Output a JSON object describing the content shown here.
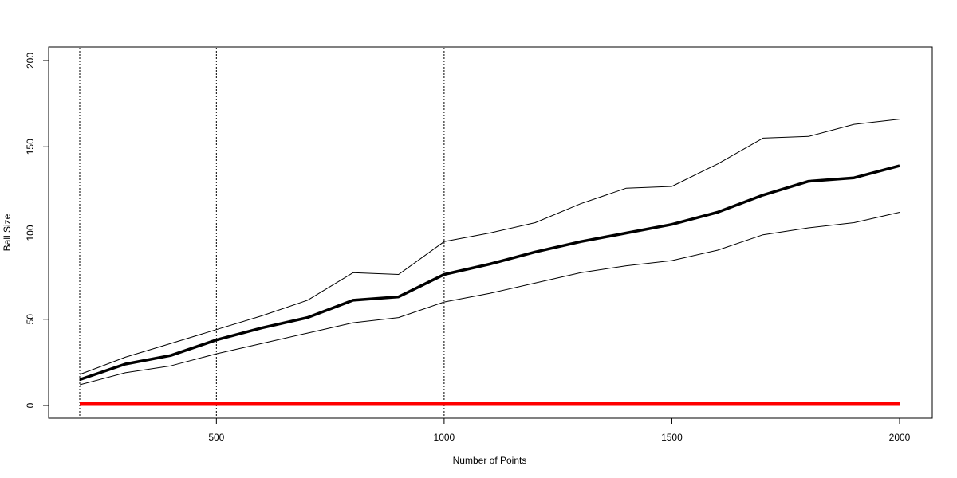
{
  "chart_data": {
    "type": "line",
    "title": "",
    "xlabel": "Number of Points",
    "ylabel": "Ball Size",
    "xlim": [
      200,
      2000
    ],
    "ylim": [
      0,
      200
    ],
    "grid": false,
    "x_ticks": [
      500,
      1000,
      1500,
      2000
    ],
    "y_ticks": [
      0,
      50,
      100,
      150,
      200
    ],
    "x": [
      200,
      300,
      400,
      500,
      600,
      700,
      800,
      900,
      1000,
      1100,
      1200,
      1300,
      1400,
      1500,
      1600,
      1700,
      1800,
      1900,
      2000
    ],
    "series": [
      {
        "color": "#000000",
        "line": "thin",
        "values": [
          18,
          28,
          36,
          44,
          52,
          61,
          77,
          76,
          95,
          100,
          106,
          117,
          126,
          127,
          140,
          155,
          156,
          163,
          166
        ]
      },
      {
        "color": "#000000",
        "line": "thick",
        "values": [
          15,
          24,
          29,
          38,
          45,
          51,
          61,
          63,
          76,
          82,
          89,
          95,
          100,
          105,
          112,
          122,
          130,
          132,
          139
        ]
      },
      {
        "color": "#000000",
        "line": "thin",
        "values": [
          12,
          19,
          23,
          30,
          36,
          42,
          48,
          51,
          60,
          65,
          71,
          77,
          81,
          84,
          90,
          99,
          103,
          106,
          112
        ]
      },
      {
        "color": "#ff0000",
        "line": "thick",
        "values": [
          1,
          1,
          1,
          1,
          1,
          1,
          1,
          1,
          1,
          1,
          1,
          1,
          1,
          1,
          1,
          1,
          1,
          1,
          1
        ]
      }
    ],
    "reference_lines": {
      "orientation": "vertical",
      "style": "dotted",
      "x": [
        200,
        500,
        1000
      ]
    }
  }
}
